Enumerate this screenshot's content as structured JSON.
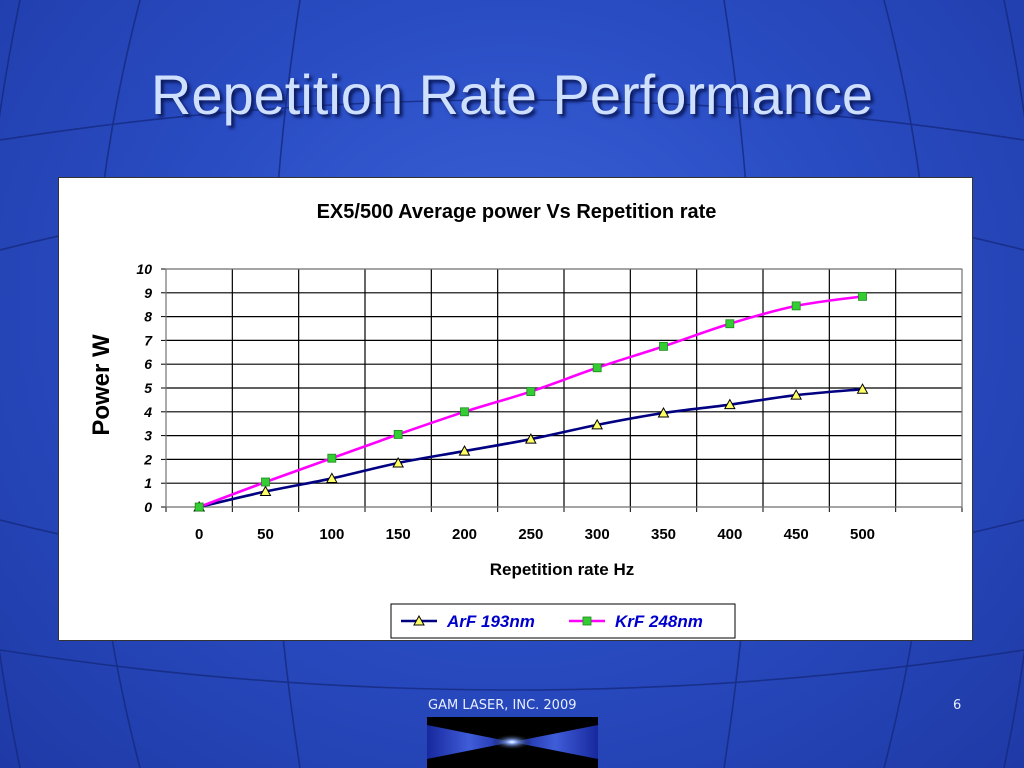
{
  "slide": {
    "title": "Repetition Rate Performance",
    "footer_text": "GAM LASER, INC. 2009",
    "page_number": "6"
  },
  "chart_data": {
    "type": "line",
    "title": "EX5/500 Average power Vs Repetition rate",
    "xlabel": "Repetition rate Hz",
    "ylabel": "Power W",
    "x": [
      0,
      50,
      100,
      150,
      200,
      250,
      300,
      350,
      400,
      450,
      500
    ],
    "x_ticks": [
      "0",
      "50",
      "100",
      "150",
      "200",
      "250",
      "300",
      "350",
      "400",
      "450",
      "500"
    ],
    "y_ticks": [
      "0",
      "1",
      "2",
      "3",
      "4",
      "5",
      "6",
      "7",
      "8",
      "9",
      "10"
    ],
    "ylim": [
      0,
      10
    ],
    "grid": true,
    "legend_position": "bottom",
    "series": [
      {
        "name": "ArF 193nm",
        "color": "#000080",
        "marker": "triangle",
        "marker_color": "#ffff66",
        "values": [
          0,
          0.65,
          1.2,
          1.85,
          2.35,
          2.85,
          3.45,
          3.95,
          4.3,
          4.7,
          4.95
        ]
      },
      {
        "name": "KrF 248nm",
        "color": "#ff00ff",
        "marker": "square",
        "marker_color": "#33cc33",
        "values": [
          0,
          1.05,
          2.05,
          3.05,
          4.0,
          4.85,
          5.85,
          6.75,
          7.7,
          8.45,
          8.85
        ]
      }
    ]
  },
  "colors": {
    "background": "#2a4dc4",
    "title_text": "#cfe0ff"
  }
}
